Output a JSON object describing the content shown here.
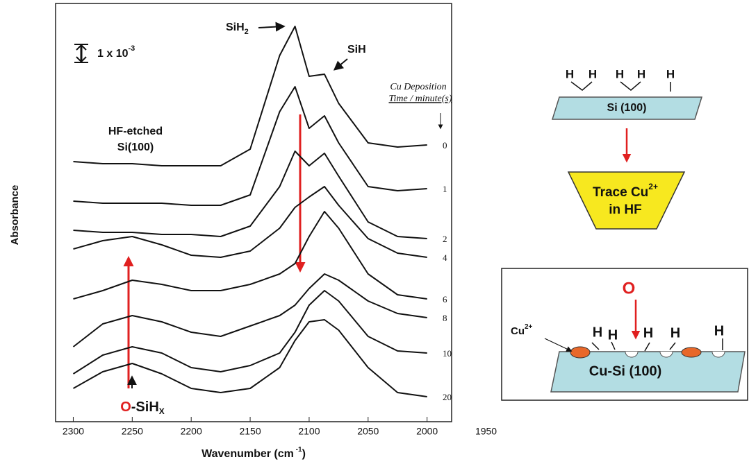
{
  "chart_data": {
    "type": "line",
    "x": [
      2300,
      2275,
      2250,
      2225,
      2200,
      2175,
      2150,
      2125,
      2112,
      2100,
      2087,
      2075,
      2050,
      2025,
      2000
    ],
    "series": [
      {
        "name": "0",
        "color": "#111111",
        "values": [
          12.9,
          12.8,
          12.8,
          12.7,
          12.7,
          12.7,
          13.5,
          18,
          19.4,
          17,
          17.1,
          15.7,
          13.8,
          13.6,
          13.7
        ]
      },
      {
        "name": "1",
        "color": "#111111",
        "values": [
          11,
          10.9,
          10.9,
          10.9,
          10.8,
          10.8,
          11.3,
          15.3,
          16.5,
          14.5,
          15.1,
          13.8,
          11.7,
          11.5,
          11.6
        ]
      },
      {
        "name": "2",
        "color": "#111111",
        "values": [
          9.6,
          9.5,
          9.5,
          9.4,
          9.4,
          9.3,
          9.8,
          11.7,
          13.4,
          12.7,
          13.3,
          12.2,
          10,
          9.3,
          9.2
        ]
      },
      {
        "name": "4",
        "color": "#111111",
        "values": [
          8.7,
          9.1,
          9.3,
          8.9,
          8.4,
          8.3,
          8.6,
          9.7,
          10.7,
          11.2,
          11.7,
          10.8,
          9.2,
          8.5,
          8.3
        ]
      },
      {
        "name": "6",
        "color": "#111111",
        "values": [
          6.3,
          6.7,
          7.2,
          7,
          6.7,
          6.7,
          7,
          7.5,
          8,
          9.3,
          10.5,
          9.7,
          7.5,
          6.5,
          6.3
        ]
      },
      {
        "name": "8",
        "color": "#111111",
        "values": [
          4,
          5.1,
          5.5,
          5.2,
          4.7,
          4.5,
          5,
          5.5,
          6,
          6.8,
          7.5,
          7.2,
          6.2,
          5.6,
          5.4
        ]
      },
      {
        "name": "10",
        "color": "#111111",
        "values": [
          2.7,
          3.6,
          4,
          3.7,
          3,
          2.8,
          3.1,
          3.7,
          4.7,
          6,
          6.7,
          6.2,
          4.5,
          3.8,
          3.7
        ]
      },
      {
        "name": "20",
        "color": "#111111",
        "values": [
          2,
          2.8,
          3.2,
          2.7,
          2,
          1.8,
          2,
          3,
          4.3,
          5.2,
          5.3,
          4.8,
          3,
          1.8,
          1.6
        ]
      }
    ],
    "xlim": [
      2315,
      1978
    ],
    "xticks": [
      2300,
      2250,
      2200,
      2150,
      2100,
      2050,
      2000,
      1950
    ],
    "ylim": [
      0,
      20
    ],
    "ylabel": "Absorbance",
    "xlabel": {
      "text": "Wavenumber (cm",
      "sup": " -1",
      "end": ")"
    },
    "legend_title": [
      "Cu Deposition",
      "Time / minute(s)"
    ],
    "annotations": {
      "scale": {
        "text": "1 x 10",
        "sup": "-3"
      },
      "sih2": {
        "text": "SiH",
        "sub": "2"
      },
      "sih": "SiH",
      "sample": [
        "HF-etched",
        "Si(100)"
      ],
      "osihx": {
        "o": "O",
        "text": "-SiH",
        "sub": "X"
      }
    }
  },
  "diagram": {
    "step1": {
      "h_labels": [
        "H",
        "H",
        "H",
        "H",
        "H"
      ],
      "substrate": "Si (100)"
    },
    "step2": {
      "text": "Trace Cu",
      "sup": "2+",
      "text2": "in HF"
    },
    "step3": {
      "o_label": "O",
      "cu_label": {
        "text": "Cu",
        "sup": "2+"
      },
      "h_labels": [
        "H",
        "H",
        "H",
        "H",
        "H"
      ],
      "substrate": "Cu-Si (100)"
    }
  }
}
